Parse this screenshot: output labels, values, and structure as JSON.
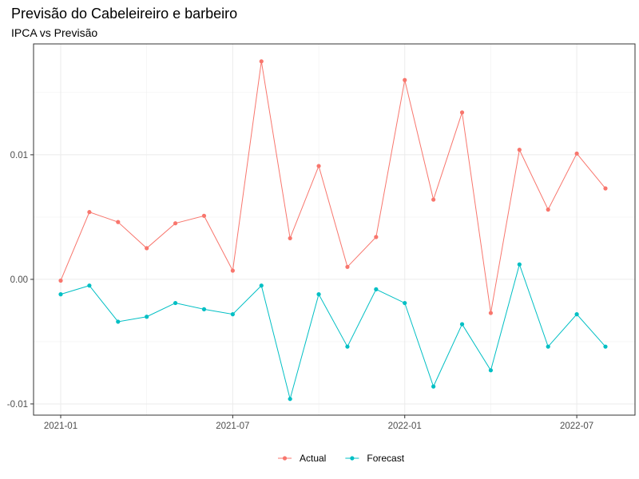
{
  "chart_data": {
    "type": "line",
    "title": "Previsão do Cabeleireiro e barbeiro",
    "subtitle": "IPCA vs Previsão",
    "xlabel": "",
    "ylabel": "",
    "x": [
      "2021-01",
      "2021-02",
      "2021-03",
      "2021-04",
      "2021-05",
      "2021-06",
      "2021-07",
      "2021-08",
      "2021-09",
      "2021-10",
      "2021-11",
      "2021-12",
      "2022-01",
      "2022-02",
      "2022-03",
      "2022-04",
      "2022-05",
      "2022-06",
      "2022-07",
      "2022-08"
    ],
    "x_ticks": [
      "2021-01",
      "2021-07",
      "2022-01",
      "2022-07"
    ],
    "y_ticks": [
      -0.01,
      0.0,
      0.01
    ],
    "y_tick_labels": [
      "-0.01",
      "0.00",
      "0.01"
    ],
    "ylim": [
      -0.0109,
      0.0189
    ],
    "grid": true,
    "legend_position": "bottom",
    "series": [
      {
        "name": "Actual",
        "color": "#F8766D",
        "values": [
          -0.0001,
          0.0054,
          0.0046,
          0.0025,
          0.0045,
          0.0051,
          0.0007,
          0.0175,
          0.0033,
          0.0091,
          0.001,
          0.0034,
          0.016,
          0.0064,
          0.0134,
          -0.0027,
          0.0104,
          0.0056,
          0.0101,
          0.0073
        ]
      },
      {
        "name": "Forecast",
        "color": "#00BFC4",
        "values": [
          -0.0012,
          -0.0005,
          -0.0034,
          -0.003,
          -0.0019,
          -0.0024,
          -0.0028,
          -0.0005,
          -0.0096,
          -0.0012,
          -0.0054,
          -0.0008,
          -0.0019,
          -0.0086,
          -0.0036,
          -0.0073,
          0.0012,
          -0.0054,
          -0.0028,
          -0.0054
        ]
      }
    ]
  }
}
